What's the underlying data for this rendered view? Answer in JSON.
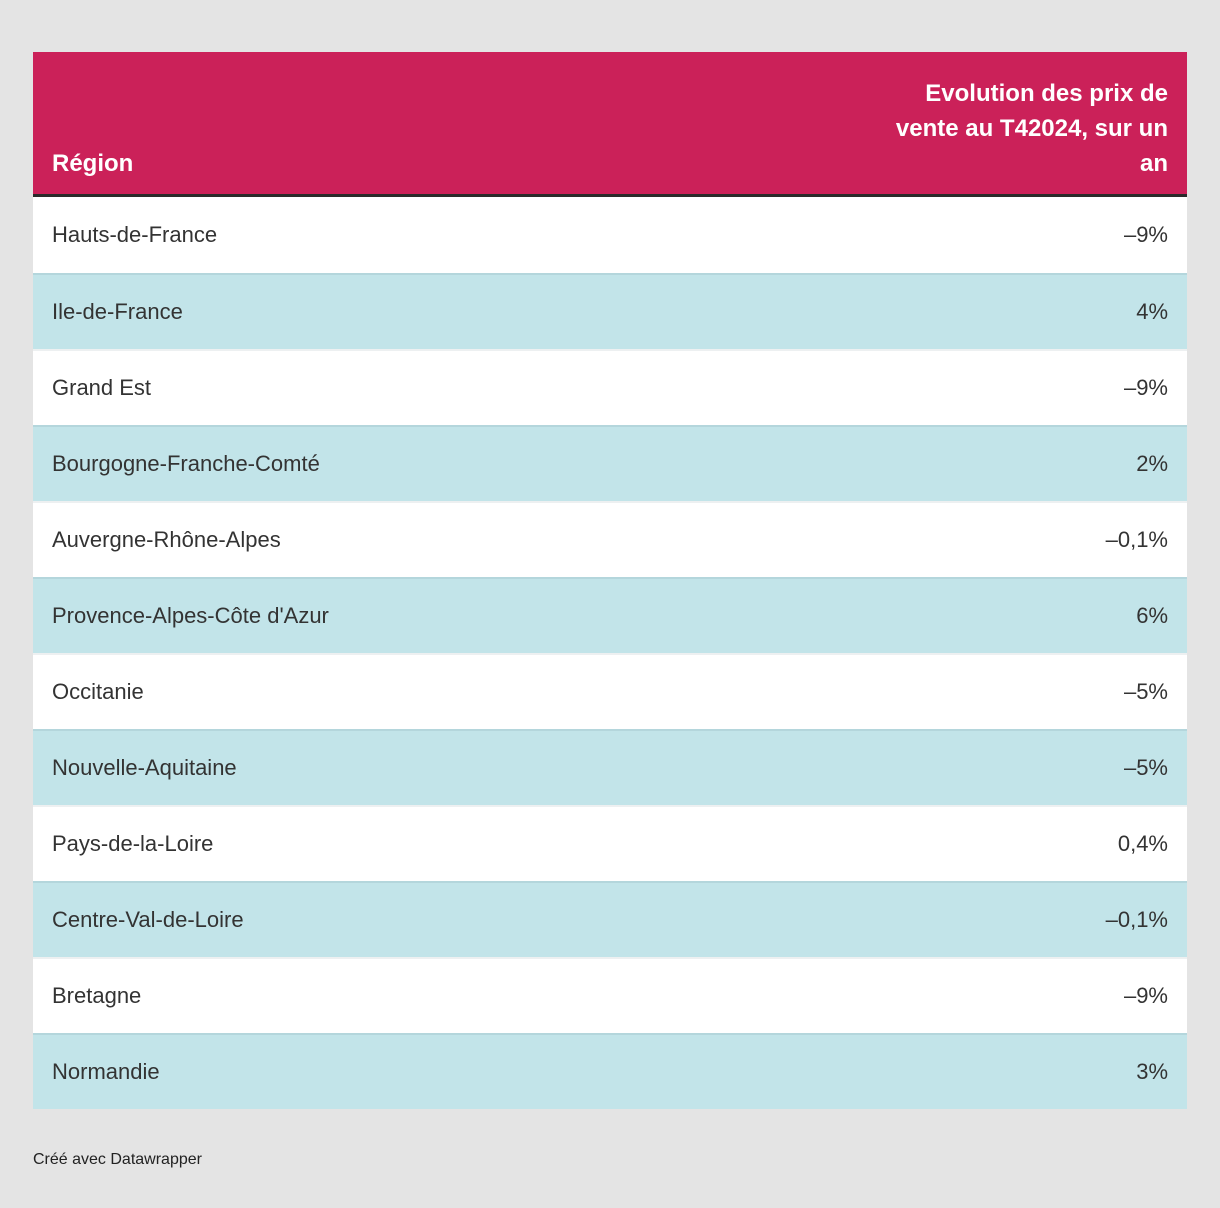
{
  "chart_data": {
    "type": "table",
    "title": "",
    "columns": [
      "Région",
      "Evolution des prix de vente au T42024, sur un an"
    ],
    "rows": [
      {
        "region": "Hauts-de-France",
        "value": "–9%",
        "value_numeric": -9
      },
      {
        "region": "Ile-de-France",
        "value": "4%",
        "value_numeric": 4
      },
      {
        "region": "Grand Est",
        "value": "–9%",
        "value_numeric": -9
      },
      {
        "region": "Bourgogne-Franche-Comté",
        "value": "2%",
        "value_numeric": 2
      },
      {
        "region": "Auvergne-Rhône-Alpes",
        "value": "–0,1%",
        "value_numeric": -0.1
      },
      {
        "region": "Provence-Alpes-Côte d'Azur",
        "value": "6%",
        "value_numeric": 6
      },
      {
        "region": "Occitanie",
        "value": "–5%",
        "value_numeric": -5
      },
      {
        "region": "Nouvelle-Aquitaine",
        "value": "–5%",
        "value_numeric": -5
      },
      {
        "region": "Pays-de-la-Loire",
        "value": "0,4%",
        "value_numeric": 0.4
      },
      {
        "region": "Centre-Val-de-Loire",
        "value": "–0,1%",
        "value_numeric": -0.1
      },
      {
        "region": "Bretagne",
        "value": "–9%",
        "value_numeric": -9
      },
      {
        "region": "Normandie",
        "value": "3%",
        "value_numeric": 3
      }
    ],
    "layout": {
      "row_striping": "alternating white and light cyan",
      "header_alignment": {
        "region": "left",
        "value": "right"
      },
      "value_alignment": "right"
    }
  },
  "table": {
    "header": {
      "region_label": "Région",
      "value_label": "Evolution des prix de vente au T42024, sur un an"
    }
  },
  "footer": {
    "credit": "Créé avec Datawrapper"
  },
  "colors": {
    "page_bg": "#e4e4e4",
    "header_bg": "#cb2159",
    "header_text": "#ffffff",
    "header_border": "#2a2a2a",
    "row_bg": "#ffffff",
    "row_alt_bg": "#c2e4e9",
    "row_text": "#333333"
  }
}
